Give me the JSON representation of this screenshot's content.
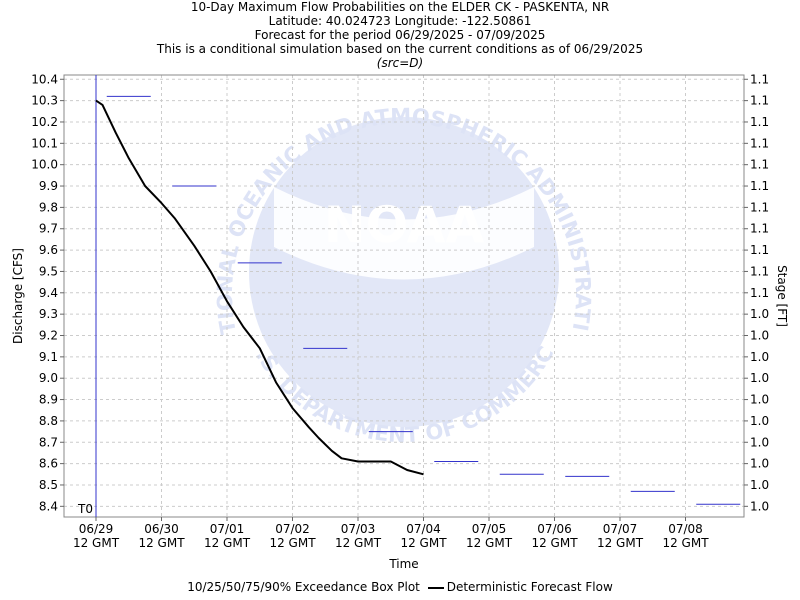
{
  "header": {
    "title": "10-Day Maximum Flow Probabilities on the ELDER CK - PASKENTA, NR",
    "location": "Latitude: 40.024723 Longitude: -122.50861",
    "period": "Forecast for the period 06/29/2025 - 07/09/2025",
    "note": "This is a conditional simulation based on the current conditions as of 06/29/2025",
    "source": "(src=D)"
  },
  "legend": {
    "boxplot": "10/25/50/75/90% Exceedance Box Plot",
    "forecast": "Deterministic Forecast Flow"
  },
  "colors": {
    "boxplot": "#3333cc",
    "forecast": "#000000",
    "t0": "#3333cc",
    "grid": "#cccccc",
    "watermark": "#dde3f6"
  },
  "watermark": {
    "logo_text": "NOAA",
    "arc_top": "NATIONAL OCEANIC AND ATMOSPHERIC ADMINISTRATION",
    "arc_bottom": "U.S. DEPARTMENT OF COMMERCE"
  },
  "chart_data": {
    "type": "line",
    "xlabel": "Time",
    "ylabel": "Discharge [CFS]",
    "ylabel_right": "Stage [FT]",
    "ylim": [
      8.35,
      10.42
    ],
    "xlim": [
      "06/29 12Z",
      "07/09 16Z"
    ],
    "grid": true,
    "t0_label": "T0",
    "x_ticks": [
      {
        "label": "06/29",
        "sub": "12 GMT"
      },
      {
        "label": "06/30",
        "sub": "12 GMT"
      },
      {
        "label": "07/01",
        "sub": "12 GMT"
      },
      {
        "label": "07/02",
        "sub": "12 GMT"
      },
      {
        "label": "07/03",
        "sub": "12 GMT"
      },
      {
        "label": "07/04",
        "sub": "12 GMT"
      },
      {
        "label": "07/05",
        "sub": "12 GMT"
      },
      {
        "label": "07/06",
        "sub": "12 GMT"
      },
      {
        "label": "07/07",
        "sub": "12 GMT"
      },
      {
        "label": "07/08",
        "sub": "12 GMT"
      }
    ],
    "y_ticks": [
      "10.4",
      "10.3",
      "10.2",
      "10.1",
      "10.0",
      "9.9",
      "9.8",
      "9.7",
      "9.6",
      "9.5",
      "9.4",
      "9.3",
      "9.2",
      "9.1",
      "9.0",
      "8.9",
      "8.8",
      "8.7",
      "8.6",
      "8.5",
      "8.4"
    ],
    "y2_ticks": [
      "1.1",
      "1.1",
      "1.1",
      "1.1",
      "1.1",
      "1.1",
      "1.1",
      "1.1",
      "1.1",
      "1.1",
      "1.1",
      "1.0",
      "1.0",
      "1.0",
      "1.0",
      "1.0",
      "1.0",
      "1.0",
      "1.0",
      "1.0",
      "1.0"
    ],
    "series": [
      {
        "name": "Deterministic Forecast Flow",
        "x_days": [
          0.0,
          0.1,
          0.3,
          0.5,
          0.75,
          1.0,
          1.2,
          1.5,
          1.75,
          2.0,
          2.25,
          2.5,
          2.75,
          3.0,
          3.25,
          3.4,
          3.6,
          3.75,
          4.0,
          4.5,
          4.75,
          5.0
        ],
        "values": [
          10.3,
          10.28,
          10.15,
          10.03,
          9.9,
          9.82,
          9.75,
          9.62,
          9.5,
          9.36,
          9.24,
          9.14,
          8.98,
          8.86,
          8.77,
          8.72,
          8.66,
          8.625,
          8.61,
          8.61,
          8.57,
          8.55
        ]
      }
    ],
    "boxplot": [
      {
        "day": 0.5,
        "value": 10.32
      },
      {
        "day": 1.5,
        "value": 9.9
      },
      {
        "day": 2.5,
        "value": 9.54
      },
      {
        "day": 3.5,
        "value": 9.14
      },
      {
        "day": 4.5,
        "value": 8.75
      },
      {
        "day": 5.5,
        "value": 8.61
      },
      {
        "day": 6.5,
        "value": 8.55
      },
      {
        "day": 7.5,
        "value": 8.54
      },
      {
        "day": 8.5,
        "value": 8.47
      },
      {
        "day": 9.5,
        "value": 8.41
      }
    ]
  }
}
